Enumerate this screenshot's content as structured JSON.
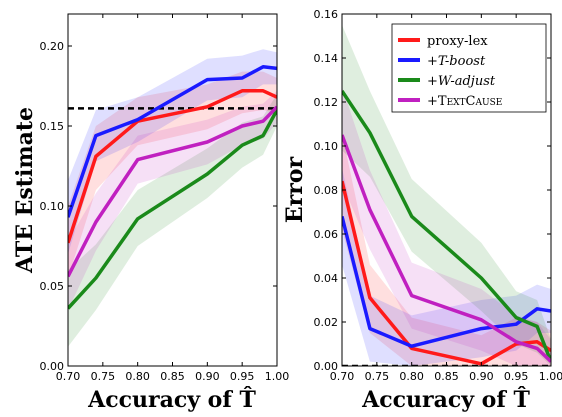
{
  "chart_data": [
    {
      "type": "line",
      "xlabel": "Accuracy of T̂",
      "ylabel": "ATE Estimate",
      "xlim": [
        0.7,
        1.0
      ],
      "ylim": [
        0.0,
        0.22
      ],
      "xticks": [
        "0.70",
        "0.75",
        "0.80",
        "0.85",
        "0.90",
        "0.95",
        "1.00"
      ],
      "yticks": [
        "0.00",
        "0.05",
        "0.10",
        "0.15",
        "0.20"
      ],
      "grid": false,
      "reference_line": {
        "y": 0.161,
        "style": "dashed",
        "color": "#000000"
      },
      "x": [
        0.7,
        0.74,
        0.8,
        0.9,
        0.95,
        0.98,
        1.0
      ],
      "series": [
        {
          "key": "proxy",
          "color": "#ff1a1a",
          "values": [
            0.077,
            0.131,
            0.153,
            0.162,
            0.172,
            0.172,
            0.168
          ],
          "band_lo": [
            0.055,
            0.11,
            0.138,
            0.148,
            0.158,
            0.16,
            0.158
          ],
          "band_hi": [
            0.1,
            0.15,
            0.168,
            0.176,
            0.184,
            0.184,
            0.18
          ]
        },
        {
          "key": "tboost",
          "color": "#1a1aff",
          "values": [
            0.093,
            0.144,
            0.154,
            0.179,
            0.18,
            0.187,
            0.186
          ],
          "band_lo": [
            0.07,
            0.128,
            0.14,
            0.166,
            0.168,
            0.176,
            0.176
          ],
          "band_hi": [
            0.116,
            0.16,
            0.168,
            0.192,
            0.194,
            0.198,
            0.196
          ]
        },
        {
          "key": "wadjust",
          "color": "#1a8a1a",
          "values": [
            0.036,
            0.055,
            0.092,
            0.12,
            0.138,
            0.144,
            0.16
          ],
          "band_lo": [
            0.012,
            0.035,
            0.075,
            0.105,
            0.124,
            0.132,
            0.15
          ],
          "band_hi": [
            0.06,
            0.076,
            0.11,
            0.136,
            0.152,
            0.156,
            0.17
          ]
        },
        {
          "key": "textcause",
          "color": "#c020c0",
          "values": [
            0.056,
            0.09,
            0.129,
            0.14,
            0.15,
            0.153,
            0.162
          ],
          "band_lo": [
            0.035,
            0.072,
            0.114,
            0.126,
            0.138,
            0.142,
            0.152
          ],
          "band_hi": [
            0.078,
            0.108,
            0.144,
            0.154,
            0.162,
            0.164,
            0.172
          ]
        }
      ]
    },
    {
      "type": "line",
      "xlabel": "Accuracy of T̂",
      "ylabel": "Error",
      "xlim": [
        0.7,
        1.0
      ],
      "ylim": [
        0.0,
        0.16
      ],
      "xticks": [
        "0.70",
        "0.75",
        "0.80",
        "0.85",
        "0.90",
        "0.95",
        "1.00"
      ],
      "yticks": [
        "0.00",
        "0.02",
        "0.04",
        "0.06",
        "0.08",
        "0.10",
        "0.12",
        "0.14",
        "0.16"
      ],
      "grid": false,
      "legend_position": "top-right",
      "reference_line": {
        "y": 0.0,
        "style": "dashed",
        "color": "#000000"
      },
      "x": [
        0.7,
        0.74,
        0.8,
        0.9,
        0.95,
        0.98,
        1.0
      ],
      "series": [
        {
          "key": "proxy",
          "name": "proxy-lex",
          "color": "#ff1a1a",
          "values": [
            0.084,
            0.031,
            0.008,
            0.001,
            0.01,
            0.011,
            0.007
          ],
          "band_lo": [
            0.062,
            0.015,
            0.0,
            0.0,
            0.0,
            0.0,
            0.0
          ],
          "band_hi": [
            0.106,
            0.046,
            0.022,
            0.014,
            0.022,
            0.02,
            0.016
          ]
        },
        {
          "key": "tboost",
          "name_prefix": "+",
          "name_italic": "T-boost",
          "color": "#1a1aff",
          "values": [
            0.068,
            0.017,
            0.009,
            0.017,
            0.019,
            0.026,
            0.025
          ],
          "band_lo": [
            0.046,
            0.002,
            0.0,
            0.004,
            0.007,
            0.015,
            0.015
          ],
          "band_hi": [
            0.09,
            0.032,
            0.023,
            0.03,
            0.032,
            0.037,
            0.035
          ]
        },
        {
          "key": "wadjust",
          "name_prefix": "+",
          "name_italic": "W-adjust",
          "color": "#1a8a1a",
          "values": [
            0.125,
            0.106,
            0.068,
            0.04,
            0.022,
            0.018,
            0.002
          ],
          "band_lo": [
            0.098,
            0.086,
            0.052,
            0.025,
            0.01,
            0.006,
            0.0
          ],
          "band_hi": [
            0.155,
            0.125,
            0.085,
            0.056,
            0.034,
            0.03,
            0.012
          ]
        },
        {
          "key": "textcause",
          "name_prefix": "+",
          "name_smallcaps": "TextCause",
          "color": "#c020c0",
          "values": [
            0.105,
            0.071,
            0.032,
            0.021,
            0.011,
            0.008,
            0.002
          ],
          "band_lo": [
            0.083,
            0.053,
            0.017,
            0.007,
            0.0,
            0.0,
            0.0
          ],
          "band_hi": [
            0.127,
            0.089,
            0.047,
            0.035,
            0.023,
            0.02,
            0.012
          ]
        }
      ]
    }
  ]
}
